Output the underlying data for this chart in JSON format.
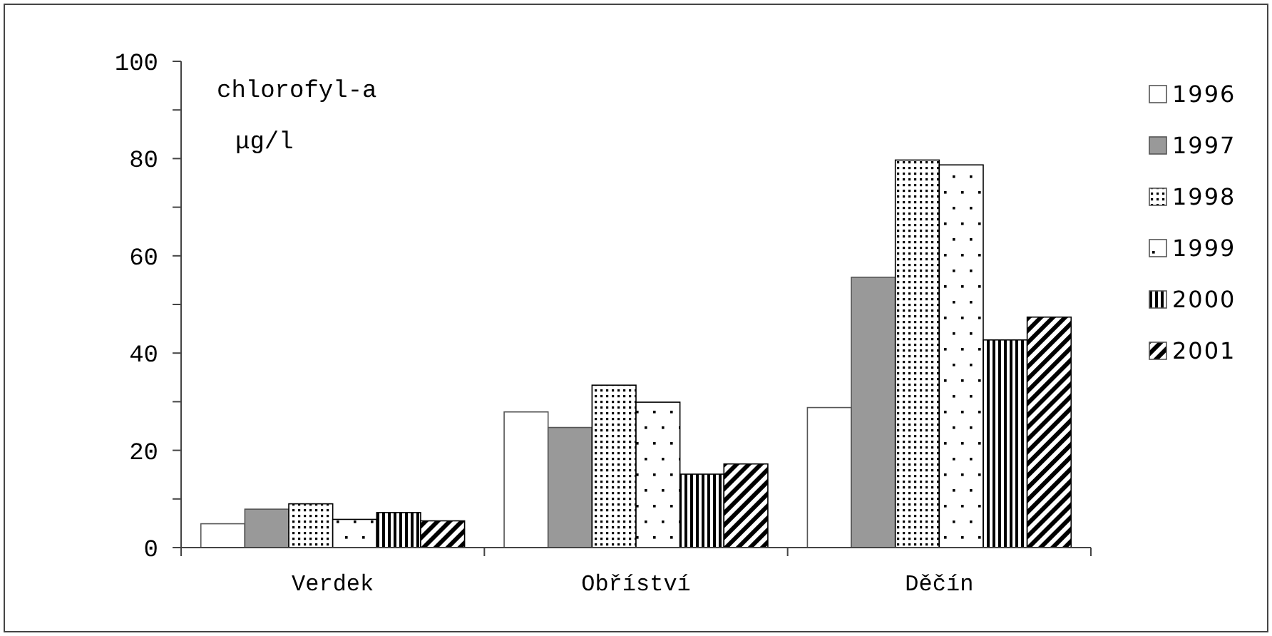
{
  "chart_data": {
    "type": "bar",
    "categories": [
      "Verdek",
      "Obříství",
      "Děčín"
    ],
    "series": [
      {
        "name": "1996",
        "color": "#ffffff",
        "values": [
          4.9,
          27.9,
          28.8
        ]
      },
      {
        "name": "1997",
        "color": "#999999",
        "values": [
          7.9,
          24.7,
          55.6
        ]
      },
      {
        "name": "1998",
        "color": "#000000",
        "values": [
          9.0,
          33.4,
          79.7
        ]
      },
      {
        "name": "1999",
        "color": "#000000",
        "values": [
          5.8,
          29.9,
          78.7
        ]
      },
      {
        "name": "2000",
        "color": "#000000",
        "values": [
          7.2,
          15.1,
          42.7
        ]
      },
      {
        "name": "2001",
        "color": "#000000",
        "values": [
          5.5,
          17.2,
          47.4
        ]
      }
    ],
    "ylim": [
      0,
      100
    ],
    "yticks": [
      0,
      {
        "value": 10,
        "label": null
      },
      20,
      {
        "value": 30,
        "label": null
      },
      40,
      {
        "value": 50,
        "label": null
      },
      60,
      {
        "value": 70,
        "label": null
      },
      80,
      {
        "value": 90,
        "label": null
      },
      100
    ],
    "annotations": [
      "chlorofyl-a",
      "μg/l"
    ],
    "legend": "right",
    "grid": false
  }
}
